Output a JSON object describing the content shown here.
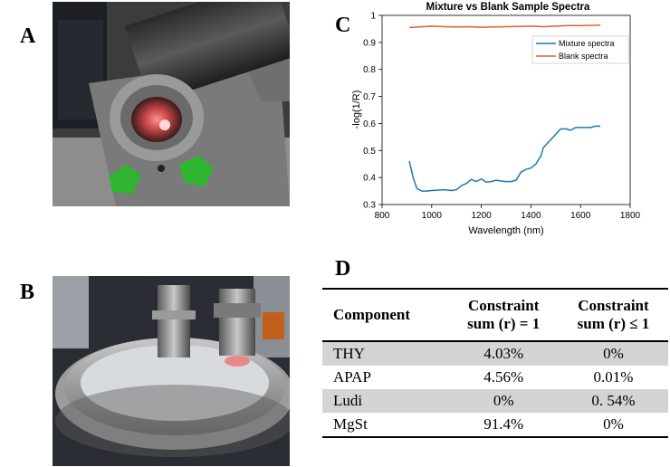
{
  "panels": {
    "a_label": "A",
    "b_label": "B",
    "c_label": "C",
    "d_label": "D"
  },
  "colors": {
    "mixture": "#1f77b4",
    "blank": "#d9622b",
    "green_tape": "#2fb52f",
    "row_shade": "#d4d4d4"
  },
  "chart_data": {
    "type": "line",
    "title": "Mixture vs Blank Sample Spectra",
    "xlabel": "Wavelength (nm)",
    "ylabel": "-log(1/R)",
    "xlim": [
      800,
      1800
    ],
    "ylim": [
      0.3,
      1.0
    ],
    "xticks": [
      800,
      1000,
      1200,
      1400,
      1600,
      1800
    ],
    "yticks": [
      0.3,
      0.4,
      0.5,
      0.6,
      0.7,
      0.8,
      0.9,
      1.0
    ],
    "ytick_labels": [
      "0.3",
      "0.4",
      "0.5",
      "0.6",
      "0.7",
      "0.8",
      "0.9",
      "1"
    ],
    "grid": false,
    "legend_position": "top-right",
    "series": [
      {
        "name": "Mixture spectra",
        "color": "#1f77b4",
        "x": [
          910,
          925,
          940,
          960,
          980,
          1000,
          1050,
          1080,
          1100,
          1120,
          1140,
          1160,
          1180,
          1200,
          1220,
          1240,
          1260,
          1280,
          1300,
          1320,
          1340,
          1360,
          1380,
          1400,
          1420,
          1440,
          1450,
          1460,
          1480,
          1500,
          1520,
          1540,
          1560,
          1580,
          1600,
          1620,
          1640,
          1660,
          1680
        ],
        "y": [
          0.46,
          0.4,
          0.36,
          0.35,
          0.35,
          0.352,
          0.355,
          0.352,
          0.355,
          0.37,
          0.378,
          0.393,
          0.385,
          0.395,
          0.383,
          0.385,
          0.39,
          0.387,
          0.385,
          0.385,
          0.39,
          0.42,
          0.43,
          0.435,
          0.45,
          0.48,
          0.51,
          0.52,
          0.54,
          0.56,
          0.58,
          0.58,
          0.575,
          0.585,
          0.585,
          0.585,
          0.585,
          0.59,
          0.59
        ]
      },
      {
        "name": "Blank spectra",
        "color": "#d9622b",
        "x": [
          910,
          950,
          1000,
          1050,
          1100,
          1150,
          1200,
          1250,
          1300,
          1350,
          1400,
          1450,
          1500,
          1550,
          1600,
          1650,
          1680
        ],
        "y": [
          0.955,
          0.957,
          0.96,
          0.958,
          0.957,
          0.958,
          0.956,
          0.957,
          0.958,
          0.959,
          0.96,
          0.958,
          0.96,
          0.962,
          0.962,
          0.963,
          0.964
        ]
      }
    ]
  },
  "table": {
    "headers": [
      [
        "Component"
      ],
      [
        "Constraint",
        "sum (r) = 1"
      ],
      [
        "Constraint",
        "sum (r) ≤ 1"
      ]
    ],
    "rows": [
      {
        "cells": [
          "THY",
          "4.03%",
          "0%"
        ],
        "shaded": true
      },
      {
        "cells": [
          "APAP",
          "4.56%",
          "0.01%"
        ],
        "shaded": false
      },
      {
        "cells": [
          "Ludi",
          "0%",
          "0. 54%"
        ],
        "shaded": true
      },
      {
        "cells": [
          "MgSt",
          "91.4%",
          "0%"
        ],
        "shaded": false
      }
    ]
  }
}
